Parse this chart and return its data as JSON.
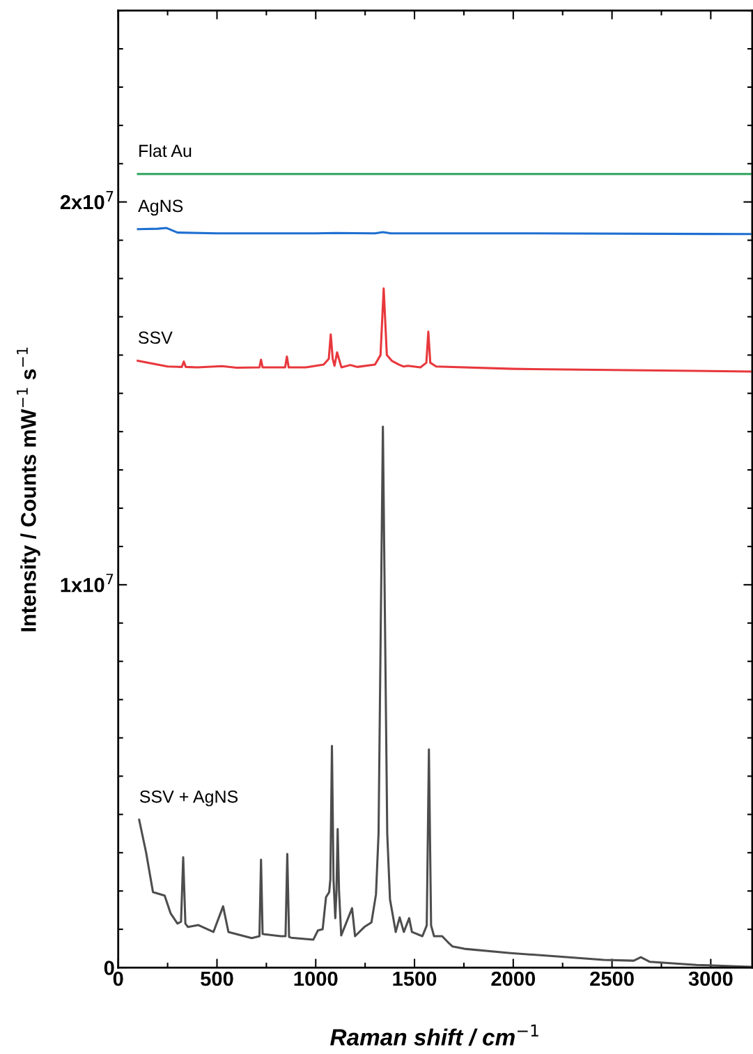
{
  "chart_data": {
    "type": "line",
    "xlabel": "Raman shift / cm$^{−1}$",
    "ylabel": "Intensity / Counts mW$^{−1}$ s$^{−1}$",
    "xlim": [
      0,
      3210
    ],
    "xticks": [
      0,
      500,
      1000,
      1500,
      2000,
      2500,
      3000
    ],
    "ylim": [
      0,
      25000000
    ],
    "yticks": [
      0,
      {
        "value": 10000000,
        "label": "1x10$^{7}$"
      },
      {
        "value": 20000000,
        "label": "2x10$^{7}$"
      }
    ],
    "grid": false,
    "legend": false,
    "marker": "none",
    "line_style": "solid",
    "series": [
      {
        "name": "Flat Au",
        "color": "#3daa6a",
        "x": [
          100,
          3200
        ],
        "values": [
          20730000,
          20730000
        ]
      },
      {
        "name": "AgNS",
        "color": "#1f6fd1",
        "x": [
          100,
          200,
          245,
          300,
          500,
          1000,
          1100,
          1300,
          1340,
          1380,
          2000,
          3200
        ],
        "values": [
          19290000,
          19300000,
          19320000,
          19200000,
          19180000,
          19180000,
          19190000,
          19180000,
          19210000,
          19180000,
          19180000,
          19160000
        ]
      },
      {
        "name": "SSV",
        "color": "#e8383d",
        "x": [
          99,
          250,
          322,
          332,
          342,
          400,
          526,
          600,
          715,
          723,
          731,
          780,
          845,
          854,
          863,
          950,
          1040,
          1066,
          1076,
          1086,
          1095,
          1108,
          1130,
          1175,
          1210,
          1300,
          1328,
          1344,
          1360,
          1385,
          1422,
          1445,
          1467,
          1530,
          1560,
          1570,
          1580,
          1610,
          2000,
          3200
        ],
        "values": [
          15850000,
          15700000,
          15690000,
          15830000,
          15690000,
          15680000,
          15710000,
          15670000,
          15680000,
          15880000,
          15680000,
          15680000,
          15680000,
          15960000,
          15680000,
          15680000,
          15750000,
          15900000,
          16540000,
          15900000,
          15720000,
          16070000,
          15680000,
          15740000,
          15690000,
          15750000,
          16000000,
          17740000,
          16000000,
          15850000,
          15750000,
          15700000,
          15720000,
          15680000,
          15800000,
          16610000,
          15800000,
          15700000,
          15640000,
          15570000
        ]
      },
      {
        "name": "SSV + AgNS",
        "color": "#4d4d4d",
        "x": [
          106,
          141,
          176,
          235,
          265,
          300,
          318,
          329,
          340,
          353,
          406,
          482,
          531,
          558,
          676,
          715,
          723,
          731,
          741,
          823,
          847,
          856,
          865,
          876,
          988,
          1011,
          1035,
          1052,
          1068,
          1074,
          1082,
          1090,
          1099,
          1105,
          1111,
          1118,
          1129,
          1184,
          1199,
          1246,
          1282,
          1305,
          1318,
          1340,
          1362,
          1376,
          1405,
          1425,
          1446,
          1473,
          1487,
          1540,
          1562,
          1573,
          1584,
          1599,
          1640,
          1670,
          1693,
          1753,
          1986,
          2222,
          2458,
          2610,
          2646,
          2692,
          2928,
          3200
        ],
        "values": [
          3860000,
          3010000,
          1970000,
          1880000,
          1420000,
          1150000,
          1200000,
          2880000,
          1150000,
          1060000,
          1110000,
          930000,
          1600000,
          930000,
          770000,
          820000,
          2820000,
          880000,
          870000,
          820000,
          820000,
          2970000,
          800000,
          780000,
          730000,
          970000,
          1000000,
          1840000,
          1970000,
          2300000,
          5790000,
          2300000,
          1290000,
          2000000,
          3620000,
          2000000,
          840000,
          1550000,
          820000,
          1060000,
          1180000,
          1910000,
          3500000,
          14130000,
          3500000,
          1780000,
          930000,
          1310000,
          930000,
          1290000,
          930000,
          820000,
          1100000,
          5700000,
          1100000,
          820000,
          820000,
          660000,
          550000,
          490000,
          380000,
          290000,
          200000,
          180000,
          270000,
          150000,
          70000,
          20000
        ]
      }
    ]
  }
}
